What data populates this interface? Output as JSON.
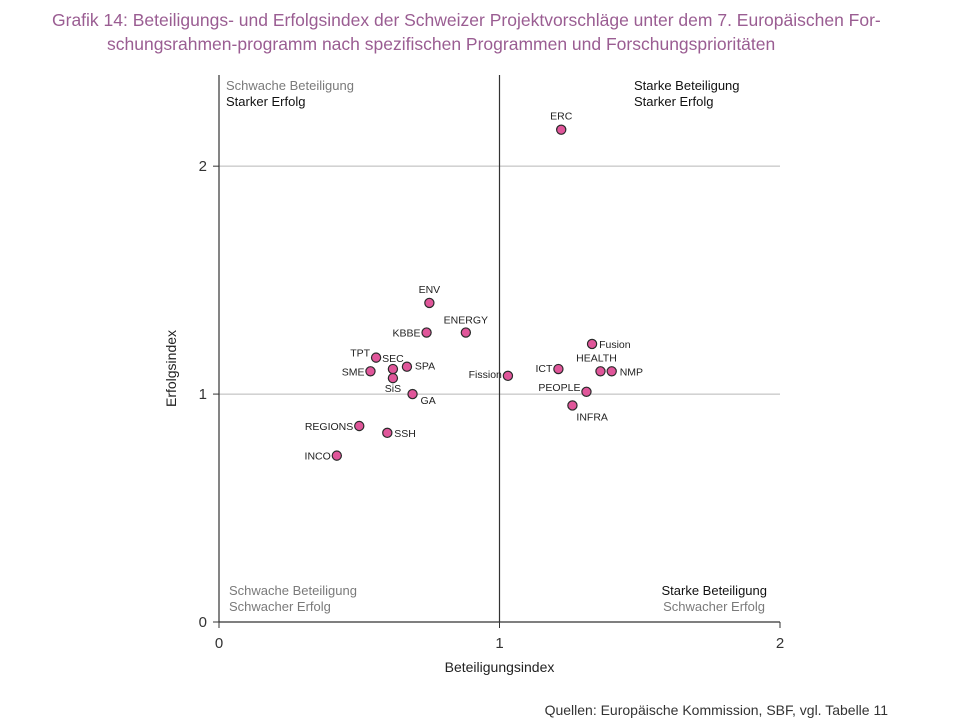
{
  "title_line1": "Grafik 14: Beteiligungs- und Erfolgsindex der Schweizer Projektvorschläge unter dem 7. Europäischen For-",
  "title_line2": "schungsrahmen-programm nach spezifischen Programmen und Forschungsprioritäten",
  "source": "Quellen: Europäische Kommission, SBF, vgl. Tabelle 11",
  "colors": {
    "marker": "#e0569a",
    "marker_stroke": "#2a2a2a",
    "axis": "#333333",
    "grid": "#b8b8b8",
    "quadrant_grey": "#7a7a7a",
    "title": "#9a5d92"
  },
  "chart_data": {
    "type": "scatter",
    "title": "",
    "xlabel": "Beteiligungsindex",
    "ylabel": "Erfolgsindex",
    "xlim": [
      0,
      2
    ],
    "ylim": [
      0,
      2.4
    ],
    "xticks": [
      "0",
      "1",
      "2"
    ],
    "yticks": [
      "0",
      "1",
      "2"
    ],
    "grid": true,
    "quadrants": {
      "top_left": [
        "Schwache Beteiligung",
        "Starker Erfolg"
      ],
      "top_right": [
        "Starke Beteiligung",
        "Starker Erfolg"
      ],
      "bottom_left": [
        "Schwache Beteiligung",
        "Schwacher Erfolg"
      ],
      "bottom_right": [
        "Starke Beteiligung",
        "Schwacher Erfolg"
      ]
    },
    "points": [
      {
        "label": "ERC",
        "x": 1.22,
        "y": 2.16
      },
      {
        "label": "ENV",
        "x": 0.75,
        "y": 1.4
      },
      {
        "label": "KBBE",
        "x": 0.74,
        "y": 1.27
      },
      {
        "label": "ENERGY",
        "x": 0.88,
        "y": 1.27
      },
      {
        "label": "TPT",
        "x": 0.56,
        "y": 1.16
      },
      {
        "label": "SEC",
        "x": 0.62,
        "y": 1.11
      },
      {
        "label": "SPA",
        "x": 0.67,
        "y": 1.12
      },
      {
        "label": "SME",
        "x": 0.54,
        "y": 1.1
      },
      {
        "label": "SiS",
        "x": 0.62,
        "y": 1.07
      },
      {
        "label": "GA",
        "x": 0.69,
        "y": 1.0
      },
      {
        "label": "REGIONS",
        "x": 0.5,
        "y": 0.86
      },
      {
        "label": "SSH",
        "x": 0.6,
        "y": 0.83
      },
      {
        "label": "INCO",
        "x": 0.42,
        "y": 0.73
      },
      {
        "label": "Fission",
        "x": 1.03,
        "y": 1.08
      },
      {
        "label": "ICT",
        "x": 1.21,
        "y": 1.11
      },
      {
        "label": "Fusion",
        "x": 1.33,
        "y": 1.22
      },
      {
        "label": "HEALTH",
        "x": 1.36,
        "y": 1.1
      },
      {
        "label": "NMP",
        "x": 1.4,
        "y": 1.1
      },
      {
        "label": "PEOPLE",
        "x": 1.31,
        "y": 1.01
      },
      {
        "label": "INFRA",
        "x": 1.26,
        "y": 0.95
      }
    ]
  }
}
